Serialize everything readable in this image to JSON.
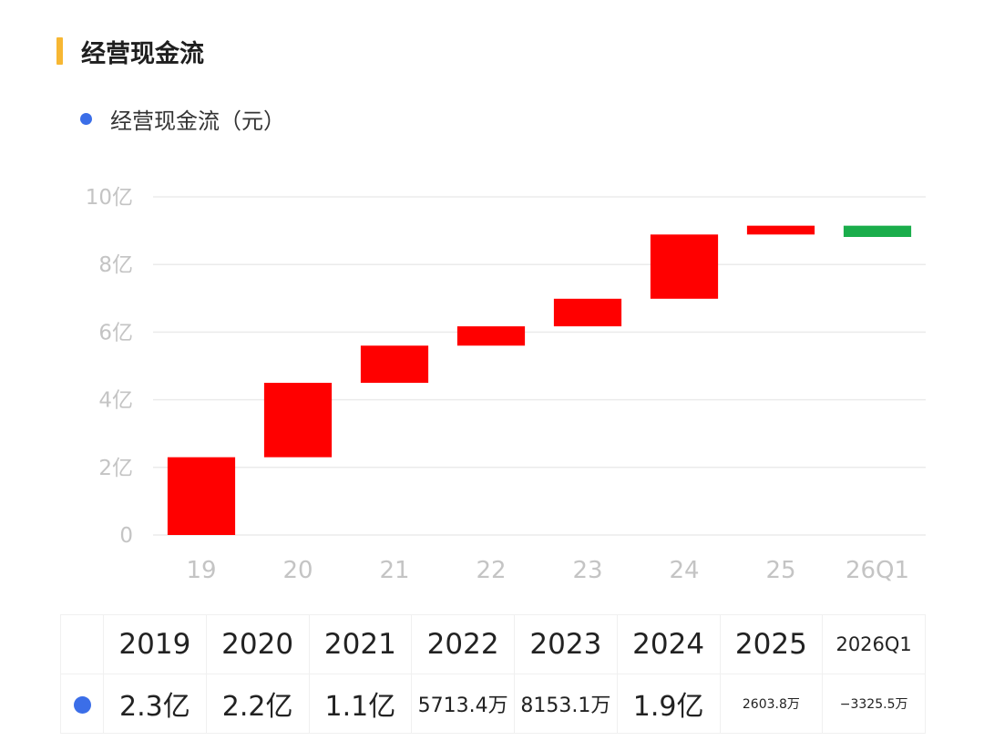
{
  "section": {
    "title": "经营现金流",
    "accent_color": "#f7b733"
  },
  "legend": {
    "label": "经营现金流（元）",
    "color": "#3b6ee8"
  },
  "chart_data": {
    "type": "waterfall",
    "categories": [
      "19",
      "20",
      "21",
      "22",
      "23",
      "24",
      "25",
      "26Q1"
    ],
    "values": [
      2.3,
      2.2,
      1.1,
      0.5713,
      0.8153,
      1.9,
      0.2604,
      -0.3326
    ],
    "value_unit": "亿",
    "ylim": [
      0,
      10
    ],
    "yticks": [
      0,
      2,
      4,
      6,
      8,
      10
    ],
    "ytick_labels": [
      "0",
      "2亿",
      "4亿",
      "6亿",
      "8亿",
      "10亿"
    ],
    "grid": true,
    "increase_color": "#ff0000",
    "decrease_color": "#1aad4b"
  },
  "table": {
    "years": [
      "2019",
      "2020",
      "2021",
      "2022",
      "2023",
      "2024",
      "2025",
      "2026Q1"
    ],
    "values": [
      "2.3亿",
      "2.2亿",
      "1.1亿",
      "5713.4万",
      "8153.1万",
      "1.9亿",
      "2603.8万",
      "−3325.5万"
    ],
    "marker_color": "#3b6ee8"
  }
}
